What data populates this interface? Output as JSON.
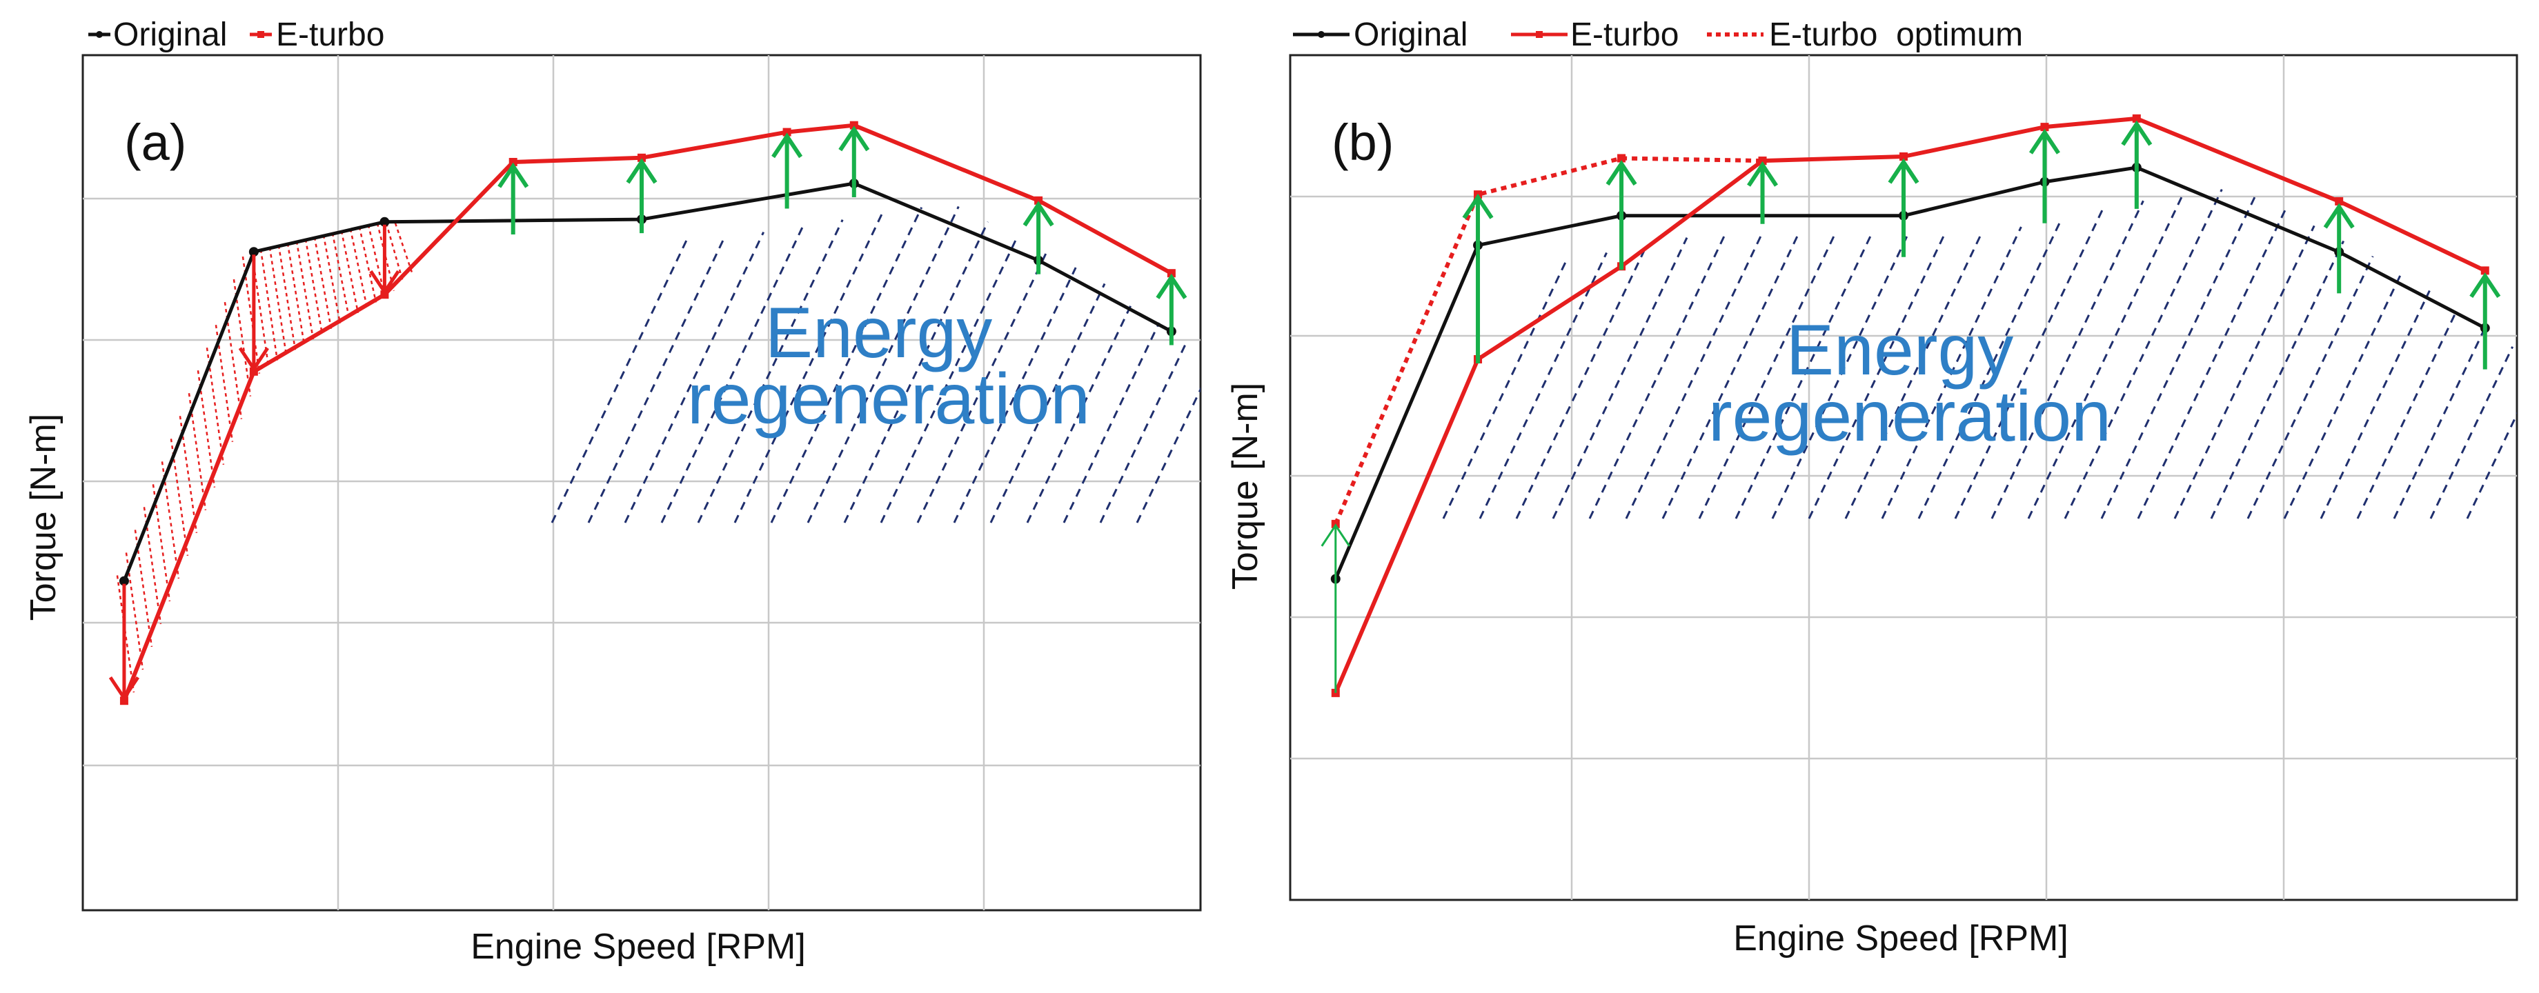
{
  "colors": {
    "original": "#111111",
    "eturbo": "#e61e1e",
    "arrow": "#17b04a",
    "hatch": "#1f2f6e",
    "energy_text": "#2e7fc6"
  },
  "chart_data": [
    {
      "type": "line",
      "panel": "(a)",
      "xlabel": "Engine Speed [RPM]",
      "ylabel": "Torque [N-m]",
      "legend": [
        "Original",
        "E-turbo"
      ],
      "annotation": "Energy\nregeneration",
      "annotation_lines": [
        "Energy",
        "regeneration"
      ],
      "xlim": [
        0,
        10
      ],
      "ylim": [
        0,
        10
      ],
      "series": [
        {
          "name": "Original",
          "x": [
            0.37,
            1.53,
            2.7,
            5.0,
            6.9,
            8.55,
            9.74
          ],
          "y": [
            3.85,
            7.7,
            8.05,
            8.08,
            8.5,
            7.6,
            6.77
          ]
        },
        {
          "name": "E-turbo",
          "x": [
            0.37,
            1.53,
            2.7,
            3.85,
            5.0,
            6.3,
            6.9,
            8.55,
            9.74
          ],
          "y": [
            2.45,
            6.3,
            7.2,
            8.75,
            8.8,
            9.1,
            9.18,
            8.3,
            7.45
          ]
        }
      ],
      "arrows_down_at_x": [
        0.37,
        1.53,
        2.7
      ],
      "arrows_up_at_x": [
        3.85,
        5.0,
        6.3,
        6.9,
        8.55,
        9.74
      ]
    },
    {
      "type": "line",
      "panel": "(b)",
      "xlabel": "Engine Speed [RPM]",
      "ylabel": "Torque [N-m]",
      "legend": [
        "Original",
        "E-turbo",
        "E-turbo  optimum"
      ],
      "annotation": "Energy\nregeneration",
      "annotation_lines": [
        "Energy",
        "regeneration"
      ],
      "xlim": [
        0,
        10
      ],
      "ylim": [
        0,
        10
      ],
      "series": [
        {
          "name": "Original",
          "x": [
            0.37,
            1.53,
            2.7,
            5.0,
            6.15,
            6.9,
            8.55,
            9.74
          ],
          "y": [
            3.8,
            7.75,
            8.1,
            8.1,
            8.5,
            8.67,
            7.67,
            6.77
          ]
        },
        {
          "name": "E-turbo",
          "x": [
            0.37,
            1.53,
            2.7,
            3.85,
            5.0,
            6.15,
            6.9,
            8.55,
            9.74
          ],
          "y": [
            2.45,
            6.4,
            7.5,
            8.75,
            8.8,
            9.15,
            9.25,
            8.27,
            7.45
          ]
        },
        {
          "name": "E-turbo  optimum",
          "x": [
            0.37,
            1.53,
            2.7,
            3.85
          ],
          "y": [
            4.45,
            8.35,
            8.78,
            8.75
          ]
        }
      ],
      "arrows_up_at_x": [
        0.37,
        1.53,
        2.7,
        3.85,
        5.0,
        6.15,
        6.9,
        8.55,
        9.74
      ]
    }
  ]
}
